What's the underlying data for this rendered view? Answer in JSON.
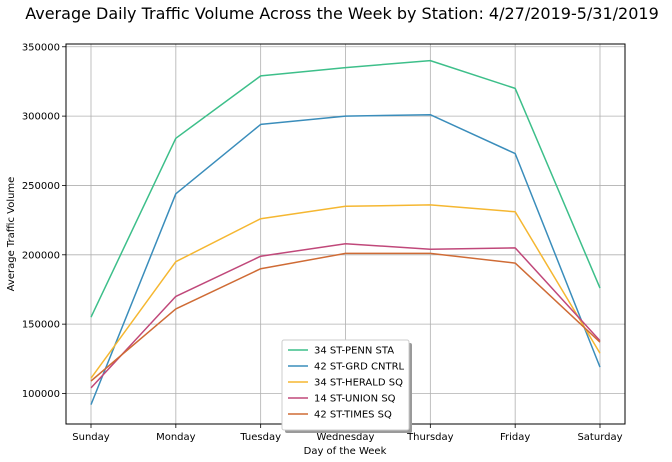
{
  "chart_data": {
    "type": "line",
    "title": "Average Daily Traffic Volume Across the Week by Station: 4/27/2019-5/31/2019",
    "xlabel": "Day of the Week",
    "ylabel": "Average Traffic Volume",
    "categories": [
      "Sunday",
      "Monday",
      "Tuesday",
      "Wednesday",
      "Thursday",
      "Friday",
      "Saturday"
    ],
    "ylim": [
      78000,
      352000
    ],
    "yticks": [
      100000,
      150000,
      200000,
      250000,
      300000,
      350000
    ],
    "ytick_labels": [
      "100000",
      "150000",
      "200000",
      "250000",
      "300000",
      "350000"
    ],
    "grid": true,
    "legend_position": "bottom-center",
    "series": [
      {
        "name": "34 ST-PENN STA",
        "color": "#3dbf8a",
        "values": [
          155000,
          284000,
          329000,
          335000,
          340000,
          320000,
          176000
        ]
      },
      {
        "name": "42 ST-GRD CNTRL",
        "color": "#3a8dbb",
        "values": [
          92000,
          244000,
          294000,
          300000,
          301000,
          273000,
          119000
        ]
      },
      {
        "name": "34 ST-HERALD SQ",
        "color": "#f5b731",
        "values": [
          111000,
          195000,
          226000,
          235000,
          236000,
          231000,
          129000
        ]
      },
      {
        "name": "14 ST-UNION SQ",
        "color": "#c0487a",
        "values": [
          104000,
          170000,
          199000,
          208000,
          204000,
          205000,
          138000
        ]
      },
      {
        "name": "42 ST-TIMES SQ",
        "color": "#cf6b35",
        "values": [
          109000,
          161000,
          190000,
          201000,
          201000,
          194000,
          137000
        ]
      }
    ]
  }
}
